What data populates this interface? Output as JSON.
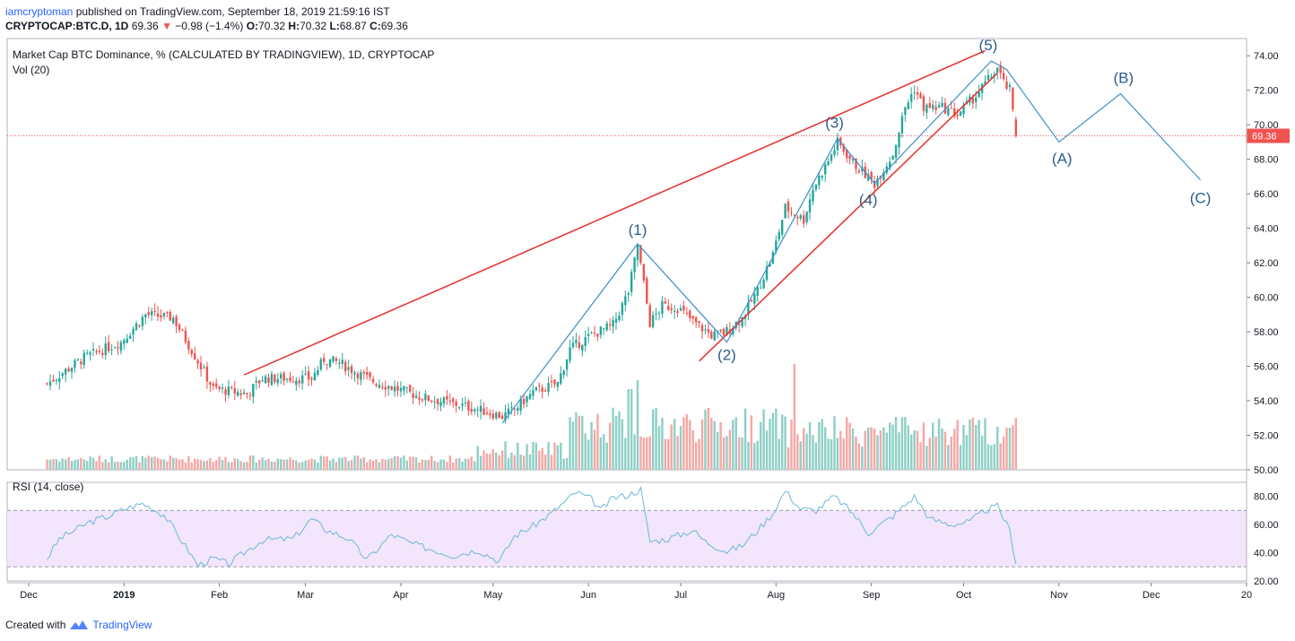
{
  "header": {
    "author": "iamcryptoman",
    "published": "published on TradingView.com, September 18, 2019 21:59:16 IST"
  },
  "symbol": {
    "ticker": "CRYPTOCAP:BTC.D, 1D",
    "last": "69.36",
    "change_arrow": "▼",
    "change": "−0.98 (−1.4%)",
    "o_label": "O:",
    "o_val": "70.32",
    "h_label": "H:",
    "h_val": "70.32",
    "l_label": "L:",
    "l_val": "68.87",
    "c_label": "C:",
    "c_val": "69.36"
  },
  "footer": {
    "created": "Created with",
    "brand": "TradingView",
    "logo_icon": "tradingview-logo-icon"
  },
  "colors": {
    "up": "#26a69a",
    "down": "#ef5350",
    "wave": "#3d8fc9",
    "trend": "#e53935",
    "vol_up": "#8ecfc6",
    "vol_down": "#f5a7a4",
    "rsi_line": "#6cb8d8",
    "rsi_band": "#f3e5fb"
  },
  "chart_data": [
    {
      "type": "candlestick",
      "title": "Market Cap BTC Dominance, % (CALCULATED BY TRADINGVIEW), 1D, CRYPTOCAP",
      "ylim": [
        50,
        75
      ],
      "yticks": [
        "74.00",
        "72.00",
        "70.00",
        "68.00",
        "66.00",
        "64.00",
        "62.00",
        "60.00",
        "58.00",
        "56.00",
        "54.00",
        "52.00",
        "50.00"
      ],
      "ytick_values": [
        74,
        72,
        70,
        68,
        66,
        64,
        62,
        60,
        58,
        56,
        54,
        52,
        50
      ],
      "last_price": 69.36,
      "last_price_label": "69.36",
      "x_axis": {
        "labels": [
          "Dec",
          "2019",
          "Feb",
          "Mar",
          "Apr",
          "May",
          "Jun",
          "Jul",
          "Aug",
          "Sep",
          "Oct",
          "Nov",
          "Dec",
          "20"
        ],
        "day_index": [
          -6,
          25,
          56,
          84,
          115,
          145,
          176,
          206,
          237,
          268,
          298,
          329,
          359,
          390
        ],
        "start_date": "2018-11-07",
        "last_bar_day": 315,
        "end_day": 390
      },
      "price_path_keypoints": [
        {
          "d": 0,
          "v": 55.0
        },
        {
          "d": 12,
          "v": 56.5
        },
        {
          "d": 24,
          "v": 57.4
        },
        {
          "d": 32,
          "v": 59.0
        },
        {
          "d": 41,
          "v": 58.8
        },
        {
          "d": 49,
          "v": 56.3
        },
        {
          "d": 54,
          "v": 54.7
        },
        {
          "d": 65,
          "v": 54.4
        },
        {
          "d": 70,
          "v": 55.3
        },
        {
          "d": 86,
          "v": 55.3
        },
        {
          "d": 90,
          "v": 56.4
        },
        {
          "d": 95,
          "v": 56.2
        },
        {
          "d": 105,
          "v": 55.2
        },
        {
          "d": 122,
          "v": 54.2
        },
        {
          "d": 138,
          "v": 53.6
        },
        {
          "d": 148,
          "v": 53.1
        },
        {
          "d": 152,
          "v": 53.5
        },
        {
          "d": 158,
          "v": 54.5
        },
        {
          "d": 166,
          "v": 55.0
        },
        {
          "d": 170,
          "v": 57.0
        },
        {
          "d": 177,
          "v": 57.8
        },
        {
          "d": 184,
          "v": 58.4
        },
        {
          "d": 189,
          "v": 60.3
        },
        {
          "d": 192,
          "v": 63.0
        },
        {
          "d": 196,
          "v": 58.5
        },
        {
          "d": 200,
          "v": 59.5
        },
        {
          "d": 205,
          "v": 59.4
        },
        {
          "d": 210,
          "v": 58.6
        },
        {
          "d": 216,
          "v": 57.8
        },
        {
          "d": 220,
          "v": 57.9
        },
        {
          "d": 226,
          "v": 58.8
        },
        {
          "d": 231,
          "v": 60.4
        },
        {
          "d": 236,
          "v": 62.5
        },
        {
          "d": 240,
          "v": 65.2
        },
        {
          "d": 246,
          "v": 64.5
        },
        {
          "d": 249,
          "v": 66.3
        },
        {
          "d": 254,
          "v": 67.9
        },
        {
          "d": 257,
          "v": 69.0
        },
        {
          "d": 262,
          "v": 67.8
        },
        {
          "d": 269,
          "v": 66.6
        },
        {
          "d": 275,
          "v": 68.3
        },
        {
          "d": 279,
          "v": 71.0
        },
        {
          "d": 282,
          "v": 72.1
        },
        {
          "d": 285,
          "v": 71.0
        },
        {
          "d": 291,
          "v": 71.0
        },
        {
          "d": 296,
          "v": 70.6
        },
        {
          "d": 302,
          "v": 71.7
        },
        {
          "d": 309,
          "v": 73.3
        },
        {
          "d": 311,
          "v": 72.4
        },
        {
          "d": 313,
          "v": 72.0
        },
        {
          "d": 315,
          "v": 69.36
        }
      ],
      "volume": {
        "label": "Vol (20)"
      },
      "annotations": {
        "wave_labels": [
          {
            "text": "(1)",
            "d": 192,
            "v": 63.0
          },
          {
            "text": "(2)",
            "d": 221,
            "v": 57.4
          },
          {
            "text": "(3)",
            "d": 256,
            "v": 69.2
          },
          {
            "text": "(4)",
            "d": 267,
            "v": 66.5
          },
          {
            "text": "(5)",
            "d": 306,
            "v": 73.7
          },
          {
            "text": "(A)",
            "d": 330,
            "v": 68.9
          },
          {
            "text": "(B)",
            "d": 350,
            "v": 71.8
          },
          {
            "text": "(C)",
            "d": 375,
            "v": 66.7
          }
        ],
        "wave_line": [
          {
            "d": 148,
            "v": 52.7
          },
          {
            "d": 192,
            "v": 63.1
          },
          {
            "d": 221,
            "v": 57.4
          },
          {
            "d": 257,
            "v": 69.2
          },
          {
            "d": 269,
            "v": 66.6
          },
          {
            "d": 307,
            "v": 73.7
          },
          {
            "d": 312,
            "v": 73.2
          },
          {
            "d": 329,
            "v": 69.0
          },
          {
            "d": 349,
            "v": 71.8
          },
          {
            "d": 375,
            "v": 66.8
          }
        ],
        "trendlines": [
          [
            {
              "d": 64,
              "v": 55.5
            },
            {
              "d": 305,
              "v": 74.3
            }
          ],
          [
            {
              "d": 212,
              "v": 56.3
            },
            {
              "d": 309,
              "v": 73.0
            }
          ]
        ]
      }
    },
    {
      "type": "line",
      "title": "RSI (14, close)",
      "ylim": [
        20,
        90
      ],
      "yticks": [
        "80.00",
        "60.00",
        "40.00",
        "20.00"
      ],
      "ytick_values": [
        80,
        60,
        40,
        20
      ],
      "band": [
        30,
        70
      ],
      "keypoints": [
        {
          "d": 0,
          "v": 36
        },
        {
          "d": 4,
          "v": 50
        },
        {
          "d": 9,
          "v": 56
        },
        {
          "d": 14,
          "v": 62
        },
        {
          "d": 20,
          "v": 66
        },
        {
          "d": 25,
          "v": 71
        },
        {
          "d": 31,
          "v": 75
        },
        {
          "d": 38,
          "v": 67
        },
        {
          "d": 44,
          "v": 48
        },
        {
          "d": 49,
          "v": 31
        },
        {
          "d": 54,
          "v": 36
        },
        {
          "d": 59,
          "v": 32
        },
        {
          "d": 64,
          "v": 40
        },
        {
          "d": 70,
          "v": 49
        },
        {
          "d": 80,
          "v": 50
        },
        {
          "d": 86,
          "v": 64
        },
        {
          "d": 91,
          "v": 56
        },
        {
          "d": 98,
          "v": 50
        },
        {
          "d": 104,
          "v": 35
        },
        {
          "d": 112,
          "v": 53
        },
        {
          "d": 118,
          "v": 47
        },
        {
          "d": 124,
          "v": 43
        },
        {
          "d": 132,
          "v": 38
        },
        {
          "d": 140,
          "v": 42
        },
        {
          "d": 147,
          "v": 34
        },
        {
          "d": 152,
          "v": 52
        },
        {
          "d": 158,
          "v": 59
        },
        {
          "d": 164,
          "v": 68
        },
        {
          "d": 172,
          "v": 83
        },
        {
          "d": 177,
          "v": 78
        },
        {
          "d": 180,
          "v": 70
        },
        {
          "d": 184,
          "v": 79
        },
        {
          "d": 189,
          "v": 81
        },
        {
          "d": 193,
          "v": 85
        },
        {
          "d": 196,
          "v": 48
        },
        {
          "d": 202,
          "v": 50
        },
        {
          "d": 210,
          "v": 56
        },
        {
          "d": 214,
          "v": 48
        },
        {
          "d": 221,
          "v": 41
        },
        {
          "d": 226,
          "v": 45
        },
        {
          "d": 231,
          "v": 56
        },
        {
          "d": 236,
          "v": 68
        },
        {
          "d": 240,
          "v": 84
        },
        {
          "d": 245,
          "v": 71
        },
        {
          "d": 250,
          "v": 70
        },
        {
          "d": 256,
          "v": 80
        },
        {
          "d": 262,
          "v": 68
        },
        {
          "d": 267,
          "v": 54
        },
        {
          "d": 275,
          "v": 66
        },
        {
          "d": 282,
          "v": 80
        },
        {
          "d": 287,
          "v": 64
        },
        {
          "d": 294,
          "v": 60
        },
        {
          "d": 300,
          "v": 62
        },
        {
          "d": 305,
          "v": 70
        },
        {
          "d": 309,
          "v": 73
        },
        {
          "d": 313,
          "v": 56
        },
        {
          "d": 315,
          "v": 32
        }
      ]
    }
  ]
}
